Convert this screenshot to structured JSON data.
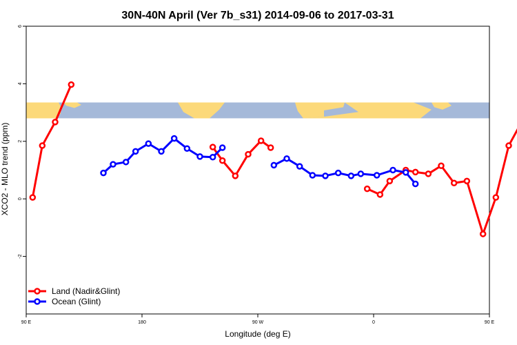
{
  "chart_data": {
    "type": "line",
    "title": "30N-40N April (Ver 7b_s31)   2014-09-06 to 2017-03-31",
    "xlabel": "Longitude (deg E)",
    "ylabel": "XCO2 - MLO trend (ppm)",
    "xlim": [
      90,
      450
    ],
    "ylim": [
      -4,
      6
    ],
    "x_ticks": [
      {
        "value": 90,
        "label": "90 E"
      },
      {
        "value": 180,
        "label": "180"
      },
      {
        "value": 270,
        "label": "90 W"
      },
      {
        "value": 360,
        "label": "0"
      },
      {
        "value": 450,
        "label": "90 E"
      },
      {
        "value": 540,
        "label": "180"
      }
    ],
    "y_ticks": [
      {
        "value": -2,
        "label": "-2"
      },
      {
        "value": 0,
        "label": "0"
      },
      {
        "value": 2,
        "label": "2"
      },
      {
        "value": 4,
        "label": "4"
      },
      {
        "value": 6,
        "label": "6"
      }
    ],
    "land_band": {
      "y_range": [
        2.8,
        3.35
      ],
      "ocean_color": "#a5b9d9",
      "land_color": "#fcd97a"
    },
    "series": [
      {
        "name": "Land (Nadir&Glint)",
        "color": "#ff0000",
        "segments": [
          [
            [
              95,
              0.05
            ],
            [
              102.5,
              1.85
            ],
            [
              112.5,
              2.67
            ],
            [
              125,
              3.97
            ]
          ],
          [
            [
              235,
              1.8
            ],
            [
              242.5,
              1.33
            ],
            [
              252.5,
              0.8
            ],
            [
              262.5,
              1.55
            ],
            [
              272.5,
              2.02
            ],
            [
              280,
              1.78
            ]
          ],
          [
            [
              355,
              0.35
            ],
            [
              365,
              0.15
            ],
            [
              372.5,
              0.62
            ],
            [
              385,
              1.0
            ],
            [
              392.5,
              0.93
            ],
            [
              402.5,
              0.87
            ],
            [
              412.5,
              1.15
            ],
            [
              422.5,
              0.55
            ],
            [
              432.5,
              0.62
            ],
            [
              445,
              -1.22
            ],
            [
              455,
              0.05
            ],
            [
              465,
              1.85
            ],
            [
              475,
              2.67
            ],
            [
              487.5,
              3.97
            ]
          ]
        ]
      },
      {
        "name": "Ocean (Glint)",
        "color": "#0000ff",
        "segments": [
          [
            [
              150,
              0.9
            ],
            [
              157.5,
              1.2
            ],
            [
              167.5,
              1.28
            ],
            [
              175,
              1.65
            ],
            [
              185,
              1.92
            ],
            [
              195,
              1.65
            ],
            [
              205,
              2.1
            ],
            [
              215,
              1.75
            ],
            [
              225,
              1.47
            ],
            [
              235,
              1.45
            ],
            [
              242.5,
              1.78
            ]
          ],
          [
            [
              282.5,
              1.17
            ],
            [
              292.5,
              1.4
            ],
            [
              302.5,
              1.13
            ],
            [
              312.5,
              0.82
            ],
            [
              322.5,
              0.8
            ],
            [
              332.5,
              0.9
            ],
            [
              342.5,
              0.8
            ],
            [
              350,
              0.87
            ],
            [
              362.5,
              0.82
            ],
            [
              375,
              1.0
            ],
            [
              385,
              0.92
            ],
            [
              392.5,
              0.52
            ]
          ]
        ]
      },
      {
        "name": "Ocean (Glint)",
        "color": "#0000ff",
        "legend": false,
        "segments": [
          [
            [
              512.5,
              0.9
            ],
            [
              520,
              1.2
            ],
            [
              530,
              1.28
            ],
            [
              540,
              1.65
            ]
          ]
        ]
      }
    ],
    "legend": {
      "position": "bottom-left"
    }
  }
}
